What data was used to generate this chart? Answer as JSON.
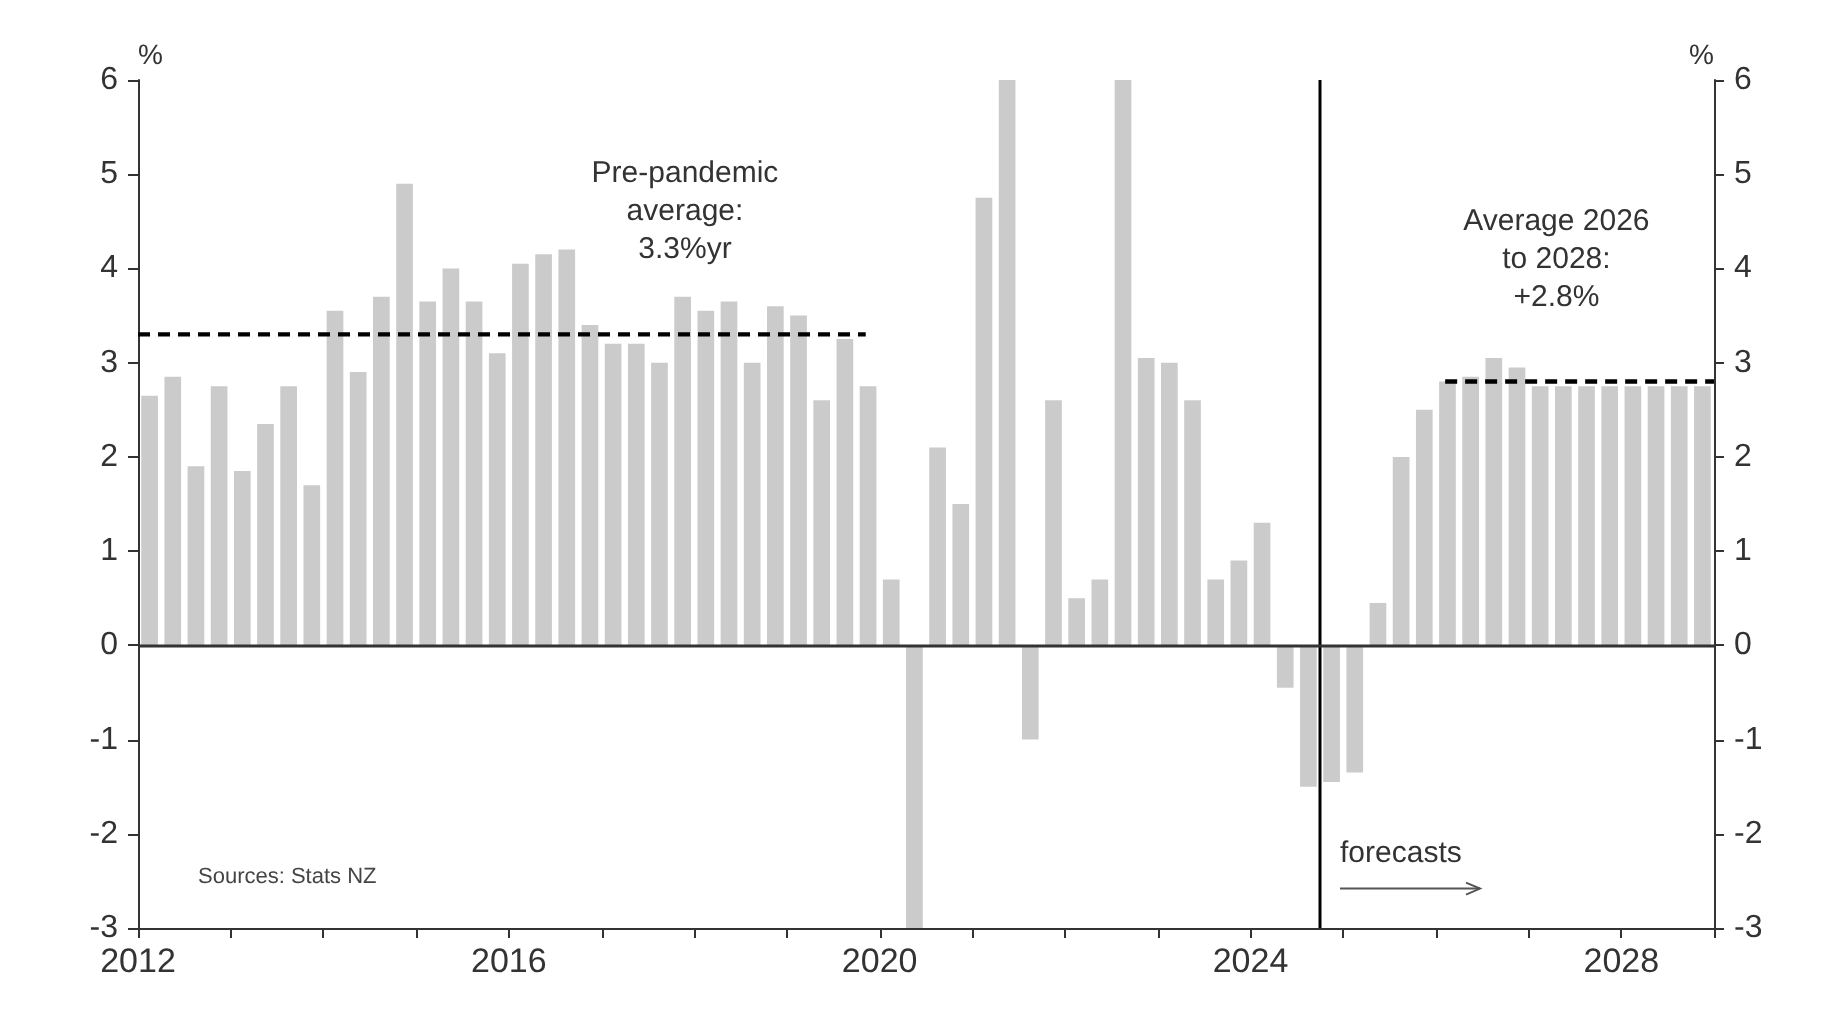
{
  "chart_data": {
    "type": "bar",
    "ylabel": "%",
    "y2label": "%",
    "x": [
      2012.125,
      2012.375,
      2012.625,
      2012.875,
      2013.125,
      2013.375,
      2013.625,
      2013.875,
      2014.125,
      2014.375,
      2014.625,
      2014.875,
      2015.125,
      2015.375,
      2015.625,
      2015.875,
      2016.125,
      2016.375,
      2016.625,
      2016.875,
      2017.125,
      2017.375,
      2017.625,
      2017.875,
      2018.125,
      2018.375,
      2018.625,
      2018.875,
      2019.125,
      2019.375,
      2019.625,
      2019.875,
      2020.125,
      2020.375,
      2020.625,
      2020.875,
      2021.125,
      2021.375,
      2021.625,
      2021.875,
      2022.125,
      2022.375,
      2022.625,
      2022.875,
      2023.125,
      2023.375,
      2023.625,
      2023.875,
      2024.125,
      2024.375,
      2024.625,
      2024.875,
      2025.125,
      2025.375,
      2025.625,
      2025.875,
      2026.125,
      2026.375,
      2026.625,
      2026.875,
      2027.125,
      2027.375,
      2027.625,
      2027.875,
      2028.125,
      2028.375,
      2028.625,
      2028.875
    ],
    "series": [
      {
        "color": "#cbcbcb",
        "values": [
          2.65,
          2.85,
          1.9,
          2.75,
          1.85,
          2.35,
          2.75,
          1.7,
          3.55,
          2.9,
          3.7,
          4.9,
          3.65,
          4.0,
          3.65,
          3.1,
          4.05,
          4.15,
          4.2,
          3.4,
          3.2,
          3.2,
          3.0,
          3.7,
          3.55,
          3.65,
          3.0,
          3.6,
          3.5,
          2.6,
          3.25,
          2.75,
          0.7,
          -3,
          2.1,
          1.5,
          4.75,
          6,
          -1.0,
          2.6,
          0.5,
          0.7,
          6,
          3.05,
          3.0,
          2.6,
          0.7,
          0.9,
          1.3,
          -0.45,
          -1.5,
          -1.45,
          -1.35,
          0.45,
          2.0,
          2.5,
          2.8,
          2.85,
          3.05,
          2.95,
          2.75,
          2.75,
          2.75,
          2.75,
          2.75,
          2.75,
          2.75,
          2.75
        ]
      },
      {
        "type": "line",
        "color": "#000000",
        "line_style": "dashed",
        "marker": "none",
        "x": [
          2012,
          2019.85
        ],
        "values": [
          3.3,
          3.3
        ]
      },
      {
        "type": "line",
        "color": "#000000",
        "line_style": "dashed",
        "marker": "none",
        "x": [
          2026.1,
          2029
        ],
        "values": [
          2.8,
          2.8
        ]
      }
    ],
    "xlim": [
      2012,
      2029
    ],
    "xticks": [
      2012,
      {
        "value": 2013,
        "label": null
      },
      {
        "value": 2014,
        "label": null
      },
      {
        "value": 2015,
        "label": null
      },
      2016,
      {
        "value": 2017,
        "label": null
      },
      {
        "value": 2018,
        "label": null
      },
      {
        "value": 2019,
        "label": null
      },
      2020,
      {
        "value": 2021,
        "label": null
      },
      {
        "value": 2022,
        "label": null
      },
      {
        "value": 2023,
        "label": null
      },
      2024,
      {
        "value": 2025,
        "label": null
      },
      {
        "value": 2026,
        "label": null
      },
      {
        "value": 2027,
        "label": null
      },
      2028,
      {
        "value": 2029,
        "label": null
      }
    ],
    "ylim": [
      -3,
      6
    ],
    "yticks": [
      -3,
      -2,
      -1,
      0,
      1,
      2,
      3,
      4,
      5,
      6
    ],
    "y2lim": [
      -3,
      6
    ],
    "y2ticks": [
      -3,
      -2,
      -1,
      0,
      1,
      2,
      3,
      4,
      5,
      6
    ],
    "ref_lines": [
      {
        "axis": "x",
        "value": 2024.75,
        "color": "#000000",
        "line_style": "solid"
      },
      {
        "axis": "y",
        "value": 0,
        "color": "#333333",
        "line_style": "solid"
      }
    ],
    "annotations": [
      {
        "text": "Pre-pandemic\naverage:\n3.3%yr",
        "x": 2017.9,
        "y": 3.3
      },
      {
        "text": "Average 2026\nto 2028:\n+2.8%",
        "x": 2027.3,
        "y": 2.8
      },
      {
        "text": "forecasts",
        "x": 2024.75,
        "y": -2.2
      },
      "Sources: Stats NZ"
    ],
    "grid": false
  }
}
